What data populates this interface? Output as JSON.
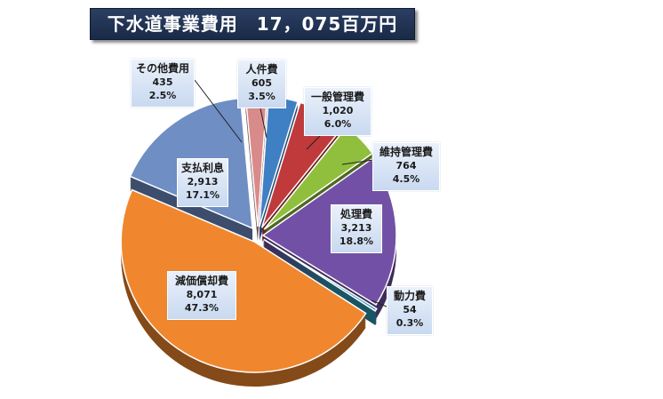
{
  "title": "下水道事業費用　17，075百万円",
  "chart_data": {
    "type": "pie",
    "slices": [
      {
        "name": "人件費",
        "value_text": "605",
        "pct_text": "3.5%",
        "value": 605,
        "color": "#3f7fc4"
      },
      {
        "name": "一般管理費",
        "value_text": "1,020",
        "pct_text": "6.0%",
        "value": 1020,
        "color": "#c0393b"
      },
      {
        "name": "維持管理費",
        "value_text": "764",
        "pct_text": "4.5%",
        "value": 764,
        "color": "#8fbf3c"
      },
      {
        "name": "処理費",
        "value_text": "3,213",
        "pct_text": "18.8%",
        "value": 3213,
        "color": "#7250a6"
      },
      {
        "name": "動力費",
        "value_text": "54",
        "pct_text": "0.3%",
        "value": 54,
        "color": "#2e9bb5"
      },
      {
        "name": "減価償却費",
        "value_text": "8,071",
        "pct_text": "47.3%",
        "value": 8071,
        "color": "#f0872e"
      },
      {
        "name": "支払利息",
        "value_text": "2,913",
        "pct_text": "17.1%",
        "value": 2913,
        "color": "#6e8ec4"
      },
      {
        "name": "その他費用",
        "value_text": "435",
        "pct_text": "2.5%",
        "value": 435,
        "color": "#d98a8a"
      }
    ]
  }
}
